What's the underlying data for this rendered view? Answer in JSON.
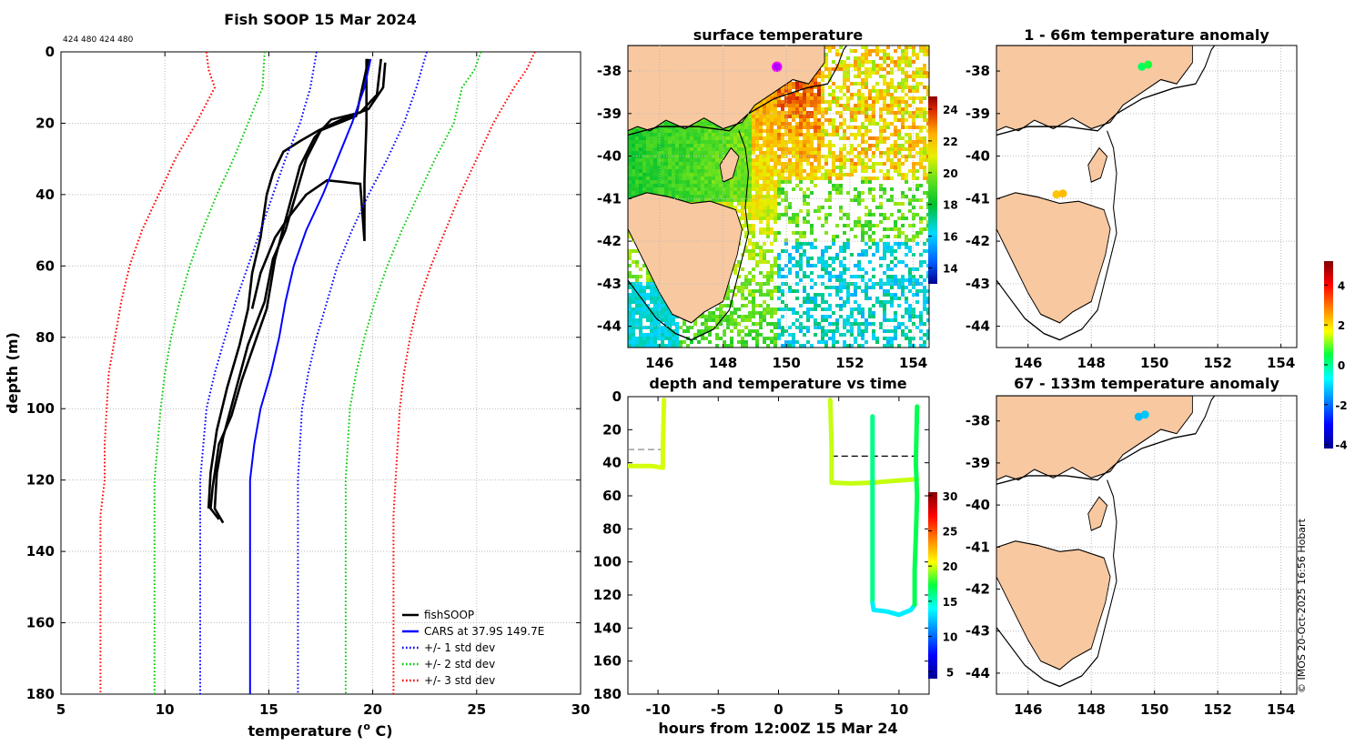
{
  "figure": {
    "title": "Fish SOOP 15 Mar 2024",
    "sensor_ids": "424 480 424 480",
    "credit": "© IMOS 20-Oct-2025 16:56 Hobart"
  },
  "chart_data": [
    {
      "id": "profile",
      "type": "line",
      "title": "Fish SOOP 15 Mar 2024",
      "xlabel": "temperature (",
      "xlabel_sup": "o",
      "xlabel_tail": " C)",
      "ylabel": "depth (m)",
      "xlim": [
        5,
        30
      ],
      "ylim": [
        0,
        180
      ],
      "y_inverted": true,
      "xticks": [
        5,
        10,
        15,
        20,
        25,
        30
      ],
      "yticks": [
        0,
        20,
        40,
        60,
        80,
        100,
        120,
        140,
        160,
        180
      ],
      "grid": true,
      "legend_position": "bottom-right",
      "series": [
        {
          "name": "fishSOOP",
          "color": "#000000",
          "style": "solid",
          "points": [
            [
              19.8,
              2
            ],
            [
              19.5,
              10
            ],
            [
              19.2,
              18
            ],
            [
              17.5,
              22
            ],
            [
              16.8,
              30
            ],
            [
              16.3,
              40
            ],
            [
              15.8,
              50
            ],
            [
              15.2,
              58
            ],
            [
              14.8,
              70
            ],
            [
              14.0,
              82
            ],
            [
              13.4,
              95
            ],
            [
              12.8,
              108
            ],
            [
              12.5,
              118
            ],
            [
              12.4,
              128
            ],
            [
              12.8,
              132
            ]
          ]
        },
        {
          "name": "fishSOOP",
          "color": "#000000",
          "style": "solid",
          "points": [
            [
              20.4,
              2
            ],
            [
              20.2,
              12
            ],
            [
              19.4,
              17
            ],
            [
              18.0,
              19
            ],
            [
              17.2,
              24
            ],
            [
              16.5,
              32
            ],
            [
              15.9,
              45
            ],
            [
              15.3,
              58
            ],
            [
              14.9,
              72
            ],
            [
              14.3,
              82
            ],
            [
              13.7,
              92
            ],
            [
              13.2,
              102
            ],
            [
              12.6,
              110
            ],
            [
              12.3,
              122
            ],
            [
              12.2,
              128
            ],
            [
              12.6,
              131
            ]
          ]
        },
        {
          "name": "fishSOOP",
          "color": "#000000",
          "style": "solid",
          "points": [
            [
              20.6,
              3
            ],
            [
              20.5,
              10
            ],
            [
              19.8,
              16
            ],
            [
              18.5,
              19
            ],
            [
              17.4,
              22
            ],
            [
              16.5,
              25
            ],
            [
              15.7,
              28
            ],
            [
              15.2,
              34
            ],
            [
              14.9,
              40
            ],
            [
              14.6,
              52
            ],
            [
              14.2,
              62
            ],
            [
              14.0,
              72
            ],
            [
              13.6,
              82
            ],
            [
              13.0,
              94
            ],
            [
              12.5,
              106
            ],
            [
              12.2,
              118
            ],
            [
              12.1,
              128
            ]
          ]
        },
        {
          "name": "fishSOOP",
          "color": "#000000",
          "style": "solid",
          "points": [
            [
              19.7,
              2
            ],
            [
              19.7,
              20
            ],
            [
              19.6,
              36
            ],
            [
              19.6,
              53
            ],
            [
              19.4,
              37
            ],
            [
              17.8,
              36
            ],
            [
              16.8,
              40
            ],
            [
              16.0,
              46
            ],
            [
              15.3,
              52
            ],
            [
              14.6,
              62
            ],
            [
              14.2,
              72
            ]
          ]
        },
        {
          "name": "CARS at 37.9S 149.7E",
          "color": "#0000ff",
          "style": "solid",
          "points": [
            [
              19.9,
              2
            ],
            [
              19.6,
              10
            ],
            [
              19.0,
              20
            ],
            [
              18.3,
              30
            ],
            [
              17.6,
              40
            ],
            [
              16.8,
              50
            ],
            [
              16.2,
              60
            ],
            [
              15.8,
              70
            ],
            [
              15.5,
              80
            ],
            [
              15.1,
              90
            ],
            [
              14.6,
              100
            ],
            [
              14.3,
              110
            ],
            [
              14.1,
              120
            ],
            [
              14.1,
              140
            ],
            [
              14.1,
              180
            ]
          ]
        },
        {
          "name": "+/- 1 std dev",
          "color": "#0000ff",
          "style": "dotted",
          "points": [
            [
              17.3,
              0
            ],
            [
              17.0,
              10
            ],
            [
              16.5,
              20
            ],
            [
              15.8,
              30
            ],
            [
              15.2,
              40
            ],
            [
              14.6,
              50
            ],
            [
              14.0,
              60
            ],
            [
              13.4,
              70
            ],
            [
              12.9,
              80
            ],
            [
              12.4,
              90
            ],
            [
              12.0,
              100
            ],
            [
              11.7,
              120
            ],
            [
              11.7,
              180
            ]
          ]
        },
        {
          "name": "+/- 1 std dev",
          "color": "#0000ff",
          "style": "dotted",
          "points": [
            [
              22.6,
              0
            ],
            [
              22.1,
              10
            ],
            [
              21.5,
              20
            ],
            [
              20.7,
              30
            ],
            [
              19.8,
              40
            ],
            [
              19.0,
              50
            ],
            [
              18.3,
              60
            ],
            [
              17.8,
              70
            ],
            [
              17.3,
              80
            ],
            [
              16.9,
              90
            ],
            [
              16.6,
              100
            ],
            [
              16.4,
              120
            ],
            [
              16.4,
              180
            ]
          ]
        },
        {
          "name": "+/- 2 std dev",
          "color": "#00cc00",
          "style": "dotted",
          "points": [
            [
              14.8,
              0
            ],
            [
              14.7,
              10
            ],
            [
              14.0,
              20
            ],
            [
              13.3,
              30
            ],
            [
              12.5,
              40
            ],
            [
              11.8,
              50
            ],
            [
              11.2,
              60
            ],
            [
              10.7,
              70
            ],
            [
              10.3,
              80
            ],
            [
              10.0,
              90
            ],
            [
              9.8,
              100
            ],
            [
              9.5,
              120
            ],
            [
              9.5,
              180
            ]
          ]
        },
        {
          "name": "+/- 2 std dev",
          "color": "#00cc00",
          "style": "dotted",
          "points": [
            [
              25.2,
              0
            ],
            [
              24.9,
              5
            ],
            [
              24.3,
              10
            ],
            [
              23.9,
              20
            ],
            [
              23.0,
              30
            ],
            [
              22.2,
              40
            ],
            [
              21.4,
              50
            ],
            [
              20.7,
              60
            ],
            [
              20.1,
              70
            ],
            [
              19.6,
              80
            ],
            [
              19.2,
              90
            ],
            [
              18.9,
              100
            ],
            [
              18.7,
              120
            ],
            [
              18.7,
              180
            ]
          ]
        },
        {
          "name": "+/- 3 std dev",
          "color": "#ff0000",
          "style": "dotted",
          "points": [
            [
              12.0,
              0
            ],
            [
              12.1,
              5
            ],
            [
              12.4,
              10
            ],
            [
              11.5,
              20
            ],
            [
              10.5,
              30
            ],
            [
              9.7,
              40
            ],
            [
              8.9,
              50
            ],
            [
              8.3,
              60
            ],
            [
              7.9,
              70
            ],
            [
              7.6,
              80
            ],
            [
              7.3,
              90
            ],
            [
              7.2,
              100
            ],
            [
              7.1,
              110
            ],
            [
              7.1,
              120
            ],
            [
              6.9,
              130
            ],
            [
              6.9,
              180
            ]
          ]
        },
        {
          "name": "+/- 3 std dev",
          "color": "#ff0000",
          "style": "dotted",
          "points": [
            [
              27.8,
              0
            ],
            [
              27.4,
              5
            ],
            [
              26.8,
              10
            ],
            [
              25.8,
              20
            ],
            [
              25.0,
              30
            ],
            [
              24.2,
              40
            ],
            [
              23.5,
              50
            ],
            [
              22.8,
              60
            ],
            [
              22.2,
              70
            ],
            [
              21.8,
              80
            ],
            [
              21.5,
              90
            ],
            [
              21.3,
              100
            ],
            [
              21.2,
              110
            ],
            [
              21.1,
              120
            ],
            [
              21.0,
              130
            ],
            [
              21.0,
              180
            ]
          ]
        }
      ],
      "legend": [
        {
          "label": "fishSOOP",
          "color": "#000000",
          "style": "solid"
        },
        {
          "label": "CARS at 37.9S 149.7E",
          "color": "#0000ff",
          "style": "solid"
        },
        {
          "label": "+/- 1 std dev",
          "color": "#0000ff",
          "style": "dotted"
        },
        {
          "label": "+/- 2 std dev",
          "color": "#00cc00",
          "style": "dotted"
        },
        {
          "label": "+/- 3 std dev",
          "color": "#ff0000",
          "style": "dotted"
        }
      ]
    },
    {
      "id": "sst",
      "type": "heatmap",
      "title": "surface temperature",
      "xlim": [
        145,
        154.5
      ],
      "ylim": [
        -44.5,
        -37.4
      ],
      "xticks": [
        146,
        148,
        150,
        152,
        154
      ],
      "yticks": [
        -38,
        -39,
        -40,
        -41,
        -42,
        -43,
        -44
      ],
      "colorbar_ticks": [
        14,
        16,
        18,
        20,
        22,
        24
      ],
      "colorbar_range": [
        13,
        24.8
      ],
      "marker": {
        "lon": 149.7,
        "lat": -37.9
      }
    },
    {
      "id": "anom1",
      "type": "scatter",
      "title": "1 - 66m temperature anomaly",
      "xlim": [
        145,
        154.5
      ],
      "ylim": [
        -44.5,
        -37.4
      ],
      "xticks": [
        146,
        148,
        150,
        152,
        154
      ],
      "yticks": [
        -38,
        -39,
        -40,
        -41,
        -42,
        -43,
        -44
      ],
      "points": [
        {
          "lon": 149.6,
          "lat": -37.9,
          "anomaly": 0.3
        },
        {
          "lon": 149.8,
          "lat": -37.85,
          "anomaly": 0.6
        },
        {
          "lon": 146.9,
          "lat": -40.9,
          "anomaly": 2.2
        },
        {
          "lon": 147.1,
          "lat": -40.88,
          "anomaly": 2.3
        }
      ]
    },
    {
      "id": "anom2",
      "type": "scatter",
      "title": "67 - 133m temperature anomaly",
      "xlim": [
        145,
        154.5
      ],
      "ylim": [
        -44.5,
        -37.4
      ],
      "xticks": [
        146,
        148,
        150,
        152,
        154
      ],
      "yticks": [
        -38,
        -39,
        -40,
        -41,
        -42,
        -43,
        -44
      ],
      "points": [
        {
          "lon": 149.5,
          "lat": -37.9,
          "anomaly": -1.3
        },
        {
          "lon": 149.7,
          "lat": -37.85,
          "anomaly": -1.2
        }
      ],
      "colorbar_ticks": [
        -4,
        -2,
        0,
        2,
        4
      ],
      "colorbar_range": [
        -4.2,
        5.2
      ]
    },
    {
      "id": "timedepth",
      "type": "scatter",
      "title": "depth and temperature vs time",
      "xlabel": "hours from 12:00Z 15 Mar 24",
      "xlim": [
        -12.5,
        12.5
      ],
      "ylim": [
        0,
        180
      ],
      "y_inverted": true,
      "xticks": [
        -10,
        -5,
        0,
        5,
        10
      ],
      "yticks": [
        0,
        20,
        40,
        60,
        80,
        100,
        120,
        140,
        160,
        180
      ],
      "colorbar_ticks": [
        5,
        10,
        15,
        20,
        25,
        30
      ],
      "colorbar_range": [
        4,
        30.5
      ],
      "segments": [
        {
          "points": [
            [
              -9.5,
              2
            ],
            [
              -9.6,
              30
            ],
            [
              -9.6,
              43
            ],
            [
              -10.5,
              42
            ],
            [
              -12.5,
              42
            ]
          ],
          "temp": 20
        },
        {
          "points": [
            [
              4.3,
              2
            ],
            [
              4.4,
              30
            ],
            [
              4.4,
              52
            ],
            [
              6,
              52.5
            ],
            [
              7.8,
              52
            ],
            [
              9.5,
              51
            ],
            [
              11.5,
              50
            ]
          ],
          "temp": 19.8
        },
        {
          "points": [
            [
              7.8,
              12
            ],
            [
              7.8,
              40
            ],
            [
              7.8,
              60
            ],
            [
              7.8,
              80
            ],
            [
              7.8,
              100
            ],
            [
              7.8,
              125
            ]
          ],
          "temp": 16
        },
        {
          "points": [
            [
              7.8,
              125
            ],
            [
              7.9,
              129
            ],
            [
              9,
              130
            ],
            [
              10,
              132
            ],
            [
              11,
              129
            ],
            [
              11.3,
              126
            ]
          ],
          "temp": 13.5
        },
        {
          "points": [
            [
              11.5,
              6
            ],
            [
              11.4,
              40
            ],
            [
              11.5,
              60
            ],
            [
              11.4,
              85
            ],
            [
              11.3,
              105
            ],
            [
              11.3,
              126
            ]
          ],
          "temp": 17
        }
      ],
      "dashed_lines": [
        {
          "x_start": -12.5,
          "x_end": -9.6,
          "depth": 32
        },
        {
          "x_start": 4.4,
          "x_end": 11.5,
          "depth": 36
        }
      ]
    }
  ]
}
